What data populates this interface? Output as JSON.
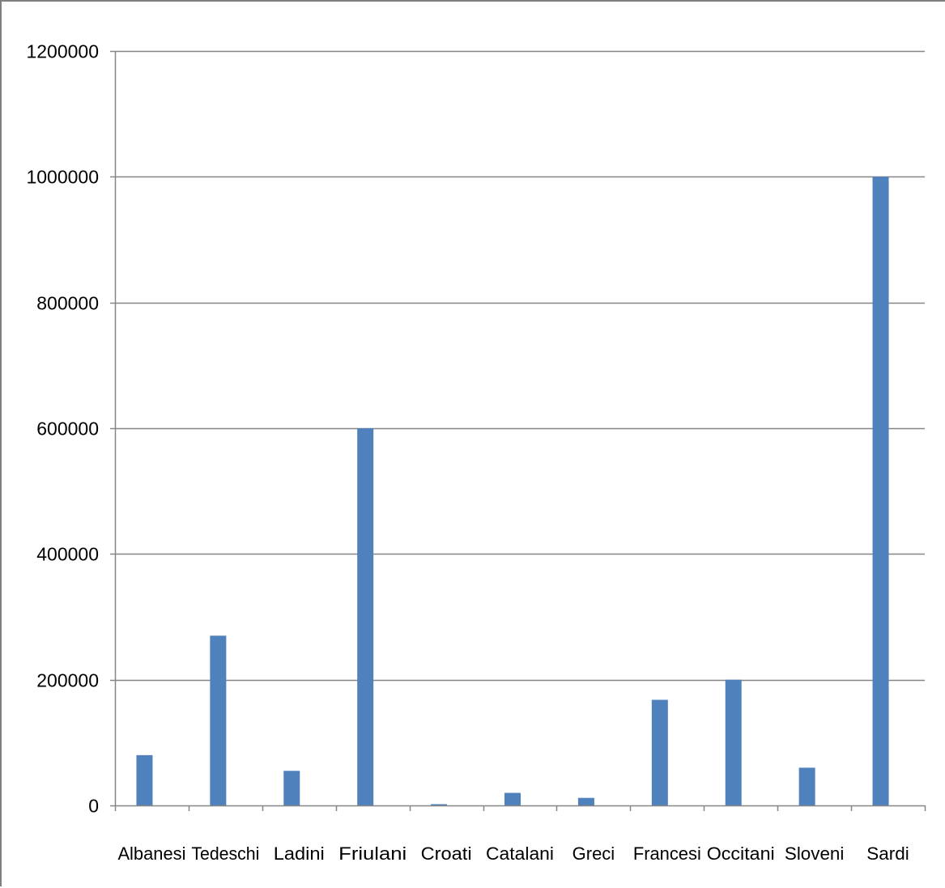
{
  "chart_data": {
    "type": "bar",
    "title": "",
    "xlabel": "",
    "ylabel": "",
    "categories": [
      "Albanesi",
      "Tedeschi",
      "Ladini",
      "Friulani",
      "Croati",
      "Catalani",
      "Greci",
      "Francesi",
      "Occitani",
      "Sloveni",
      "Sardi"
    ],
    "values": [
      80000,
      270000,
      55000,
      600000,
      2000,
      20000,
      12000,
      168000,
      200000,
      60000,
      1000000
    ],
    "ylim": [
      0,
      1200000
    ],
    "yticks": [
      "0",
      "200000",
      "400000",
      "600000",
      "800000",
      "1000000",
      "1200000"
    ],
    "ytick_values": [
      0,
      200000,
      400000,
      600000,
      800000,
      1000000,
      1200000
    ],
    "grid": true,
    "legend": "none",
    "bar_color": "#4f81bd",
    "grid_color": "#868686",
    "axis_color": "#868686"
  }
}
